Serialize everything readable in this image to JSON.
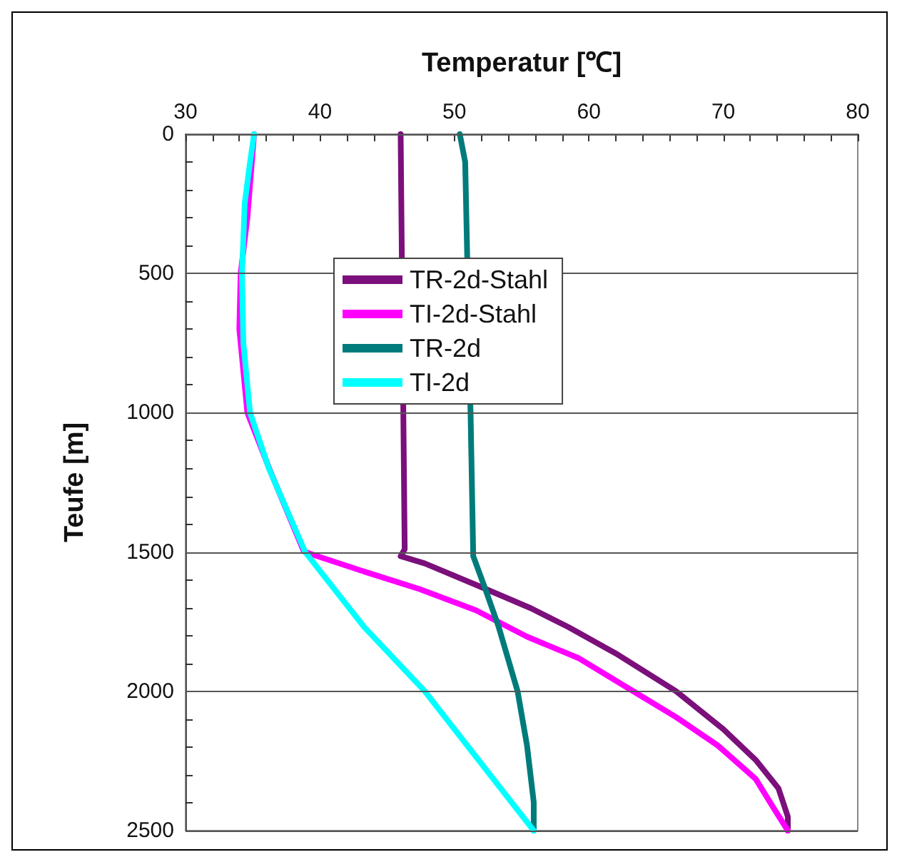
{
  "chart_data": {
    "type": "line",
    "xlabel": "Temperatur [℃]",
    "ylabel": "Teufe [m]",
    "xlim": [
      30,
      80
    ],
    "xticks": [
      30,
      {
        "value": 32,
        "label": null
      },
      {
        "value": 34,
        "label": null
      },
      {
        "value": 36,
        "label": null
      },
      {
        "value": 38,
        "label": null
      },
      40,
      {
        "value": 42,
        "label": null
      },
      {
        "value": 44,
        "label": null
      },
      {
        "value": 46,
        "label": null
      },
      {
        "value": 48,
        "label": null
      },
      50,
      {
        "value": 52,
        "label": null
      },
      {
        "value": 54,
        "label": null
      },
      {
        "value": 56,
        "label": null
      },
      {
        "value": 58,
        "label": null
      },
      60,
      {
        "value": 62,
        "label": null
      },
      {
        "value": 64,
        "label": null
      },
      {
        "value": 66,
        "label": null
      },
      {
        "value": 68,
        "label": null
      },
      70,
      {
        "value": 72,
        "label": null
      },
      {
        "value": 74,
        "label": null
      },
      {
        "value": 76,
        "label": null
      },
      {
        "value": 78,
        "label": null
      },
      80
    ],
    "ylim": [
      2500,
      0
    ],
    "yticks": [
      0,
      {
        "value": 100,
        "label": null
      },
      {
        "value": 200,
        "label": null
      },
      {
        "value": 300,
        "label": null
      },
      {
        "value": 400,
        "label": null
      },
      500,
      {
        "value": 600,
        "label": null
      },
      {
        "value": 700,
        "label": null
      },
      {
        "value": 800,
        "label": null
      },
      {
        "value": 900,
        "label": null
      },
      1000,
      {
        "value": 1100,
        "label": null
      },
      {
        "value": 1200,
        "label": null
      },
      {
        "value": 1300,
        "label": null
      },
      {
        "value": 1400,
        "label": null
      },
      1500,
      {
        "value": 1600,
        "label": null
      },
      {
        "value": 1700,
        "label": null
      },
      {
        "value": 1800,
        "label": null
      },
      {
        "value": 1900,
        "label": null
      },
      2000,
      {
        "value": 2100,
        "label": null
      },
      {
        "value": 2200,
        "label": null
      },
      {
        "value": 2300,
        "label": null
      },
      {
        "value": 2400,
        "label": null
      },
      2500
    ],
    "grid": "y",
    "legend": "top left",
    "marker": "none",
    "line_style": "solid",
    "series": [
      {
        "name": "TR-2d-Stahl",
        "color": "#7b0f7b",
        "x": [
          46.0,
          46.2,
          46.3,
          46.0,
          47.8,
          52.0,
          55.7,
          58.5,
          62.0,
          66.5,
          70.0,
          72.4,
          74.1,
          74.8,
          74.8
        ],
        "values": [
          0,
          1000,
          1490,
          1515,
          1541,
          1626,
          1702,
          1770,
          1864,
          2000,
          2136,
          2246,
          2348,
          2450,
          2500
        ]
      },
      {
        "name": "TI-2d-Stahl",
        "color": "#ff00ff",
        "x": [
          35.1,
          34.6,
          34.1,
          34.0,
          34.6,
          36.3,
          38.8,
          39.5,
          43.6,
          47.4,
          51.6,
          55.4,
          59.2,
          63.0,
          66.5,
          69.6,
          72.4,
          73.7,
          74.8
        ],
        "values": [
          0,
          300,
          500,
          700,
          1000,
          1209,
          1498,
          1510,
          1575,
          1633,
          1709,
          1804,
          1880,
          1991,
          2093,
          2195,
          2314,
          2416,
          2500
        ]
      },
      {
        "name": "TR-2d",
        "color": "#007b7b",
        "x": [
          50.4,
          50.8,
          51.2,
          51.4,
          52.3,
          53.3,
          54.7,
          55.4,
          55.9,
          55.9
        ],
        "values": [
          0,
          100,
          1000,
          1515,
          1633,
          1770,
          2000,
          2195,
          2398,
          2500
        ]
      },
      {
        "name": "TI-2d",
        "color": "#00ffff",
        "x": [
          35.1,
          34.8,
          34.4,
          34.2,
          34.3,
          34.8,
          36.2,
          38.9,
          43.3,
          47.8,
          55.9
        ],
        "values": [
          0,
          100,
          250,
          500,
          750,
          1000,
          1200,
          1500,
          1770,
          2000,
          2500
        ]
      }
    ]
  }
}
